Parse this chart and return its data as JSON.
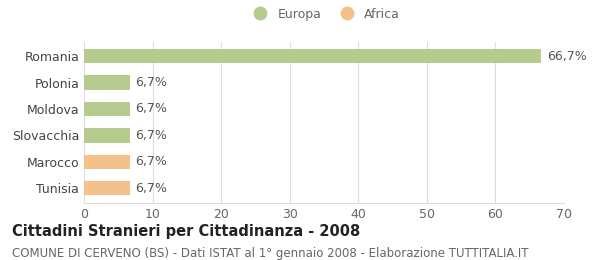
{
  "categories": [
    "Tunisia",
    "Marocco",
    "Slovacchia",
    "Moldova",
    "Polonia",
    "Romania"
  ],
  "values": [
    6.7,
    6.7,
    6.7,
    6.7,
    6.7,
    66.7
  ],
  "colors": [
    "#f5c18a",
    "#f5c18a",
    "#b5cc8e",
    "#b5cc8e",
    "#b5cc8e",
    "#b5cc8e"
  ],
  "value_labels": [
    "6,7%",
    "6,7%",
    "6,7%",
    "6,7%",
    "6,7%",
    "66,7%"
  ],
  "xlim": [
    0,
    70
  ],
  "xticks": [
    0,
    10,
    20,
    30,
    40,
    50,
    60,
    70
  ],
  "legend_europa_color": "#b5cc8e",
  "legend_africa_color": "#f5c18a",
  "title": "Cittadini Stranieri per Cittadinanza - 2008",
  "subtitle": "COMUNE DI CERVENO (BS) - Dati ISTAT al 1° gennaio 2008 - Elaborazione TUTTITALIA.IT",
  "title_fontsize": 10.5,
  "subtitle_fontsize": 8.5,
  "label_fontsize": 9,
  "tick_fontsize": 9,
  "background_color": "#ffffff",
  "grid_color": "#dddddd",
  "bar_height": 0.55
}
